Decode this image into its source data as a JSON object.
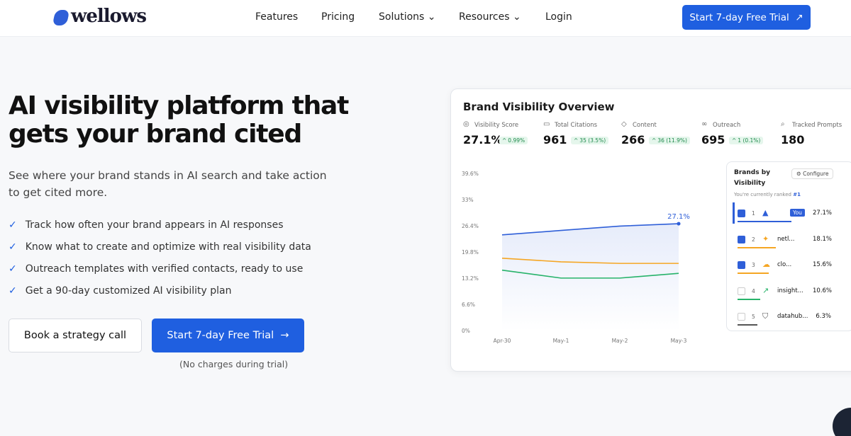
{
  "nav": {
    "logo": "wellows",
    "links": [
      "Features",
      "Pricing",
      "Solutions",
      "Resources",
      "Login"
    ],
    "cta": "Start 7-day Free Trial"
  },
  "hero": {
    "title_lines": [
      "AI visibility platform that",
      "gets your brand cited"
    ],
    "subtitle": "See where your brand stands in AI search and take action to get cited more.",
    "features": [
      "Track how often your brand appears in AI responses",
      "Know what to create and optimize with real visibility data",
      "Outreach templates with verified contacts, ready to use",
      "Get a 90-day customized AI visibility plan"
    ],
    "secondary_button": "Book a strategy call",
    "primary_button": "Start 7-day Free Trial",
    "note": "(No charges during trial)"
  },
  "dashboard": {
    "title": "Brand Visibility Overview",
    "metrics": [
      {
        "label": "Visibility Score",
        "value": "27.1%",
        "change": "0.99%"
      },
      {
        "label": "Total Citations",
        "value": "961",
        "change": "35 (3.5%)"
      },
      {
        "label": "Content",
        "value": "266",
        "change": "36 (11.9%)"
      },
      {
        "label": "Outreach",
        "value": "695",
        "change": "1 (0.1%)"
      },
      {
        "label": "Tracked Prompts",
        "value": "180"
      }
    ],
    "brands": {
      "title": "Brands by Visibility",
      "configure": "Configure",
      "ranked_text": "You're currently ranked",
      "ranked_value": "#1",
      "rows": [
        {
          "rank": 1,
          "tag": "You",
          "value": "27.1%"
        },
        {
          "rank": 2,
          "name": "netl...",
          "value": "18.1%"
        },
        {
          "rank": 3,
          "name": "clo...",
          "value": "15.6%"
        },
        {
          "rank": 4,
          "name": "insight...",
          "value": "10.6%"
        },
        {
          "rank": 5,
          "name": "datahub...",
          "value": "6.3%"
        }
      ]
    }
  },
  "chart_data": {
    "type": "line",
    "categories": [
      "Apr-30",
      "May-1",
      "May-2",
      "May-3"
    ],
    "series": [
      {
        "color": "#2f5fd8",
        "values": [
          24.3,
          25.4,
          26.5,
          27.1
        ],
        "value_labels": [
          null,
          null,
          null,
          "27.1%"
        ]
      },
      {
        "color": "#f5a623",
        "values": [
          18.4,
          17.5,
          17.1,
          17.1
        ]
      },
      {
        "color": "#27b36a",
        "values": [
          15.4,
          13.4,
          13.4,
          14.6
        ]
      }
    ],
    "ylim": [
      0,
      39.6
    ],
    "yticks": [
      {
        "value": 0,
        "label": "0%"
      },
      {
        "value": 6.6,
        "label": "6.6%"
      },
      {
        "value": 13.2,
        "label": "13.2%"
      },
      {
        "value": 19.8,
        "label": "19.8%"
      },
      {
        "value": 26.4,
        "label": "26.4%"
      },
      {
        "value": 33,
        "label": "33%"
      },
      {
        "value": 39.6,
        "label": "39.6%"
      }
    ],
    "grid": false
  }
}
